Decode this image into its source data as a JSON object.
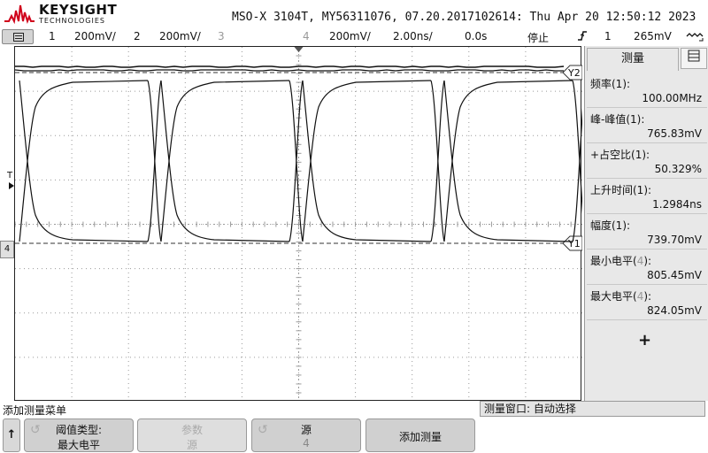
{
  "header": {
    "brand": "KEYSIGHT",
    "brand_sub": "TECHNOLOGIES",
    "title": "MSO-X 3104T, MY56311076, 07.20.2017102614: Thu Apr 20 12:50:12 2023"
  },
  "channel_bar": {
    "ch1_num": "1",
    "ch1_scale": "200mV/",
    "ch2_num": "2",
    "ch2_scale": "200mV/",
    "ch3_num": "3",
    "ch4_num": "4",
    "ch4_scale": "200mV/",
    "timebase": "2.00ns/",
    "delay": "0.0s",
    "run_state": "停止",
    "trigger_slope_icon": "rising-edge-icon",
    "trigger_symbol": "f",
    "trigger_channel": "1",
    "trigger_level": "265mV",
    "measure_icon": "measurement-loop-icon"
  },
  "scope": {
    "cursor_y2_label": "Y2",
    "cursor_y1_label": "Y1",
    "trigger_marker": "T",
    "ground_marker": "4",
    "waveform_color": "#111111",
    "grid_color": "#9a9a9a"
  },
  "measure_panel": {
    "tab_label": "测量",
    "tab_icon": "settings-grid-icon",
    "items": [
      {
        "label": "频率(1):",
        "value": "100.00MHz",
        "src_dim": false
      },
      {
        "label": "峰-峰值(1):",
        "value": "765.83mV",
        "src_dim": false
      },
      {
        "label": "+占空比(1):",
        "value": "50.329%",
        "src_dim": false
      },
      {
        "label": "上升时间(1):",
        "value": "1.2984ns",
        "src_dim": false
      },
      {
        "label": "幅度(1):",
        "value": "739.70mV",
        "src_dim": false
      },
      {
        "label_pre": "最小电平(",
        "label_src": "4",
        "label_post": "):",
        "value": "805.45mV",
        "src_dim": true
      },
      {
        "label_pre": "最大电平(",
        "label_src": "4",
        "label_post": "):",
        "value": "824.05mV",
        "src_dim": true
      }
    ],
    "add_symbol": "+"
  },
  "status_bar": {
    "left_text": "添加测量菜单",
    "right_text": "测量窗口: 自动选择"
  },
  "softkeys": {
    "up_symbol": "↑",
    "key1_line1": "阈值类型:",
    "key1_line2": "最大电平",
    "key2_line1": "参数",
    "key2_line2": "源",
    "key3_line1": "源",
    "key3_line2": "4",
    "key4_line1": "添加测量"
  }
}
